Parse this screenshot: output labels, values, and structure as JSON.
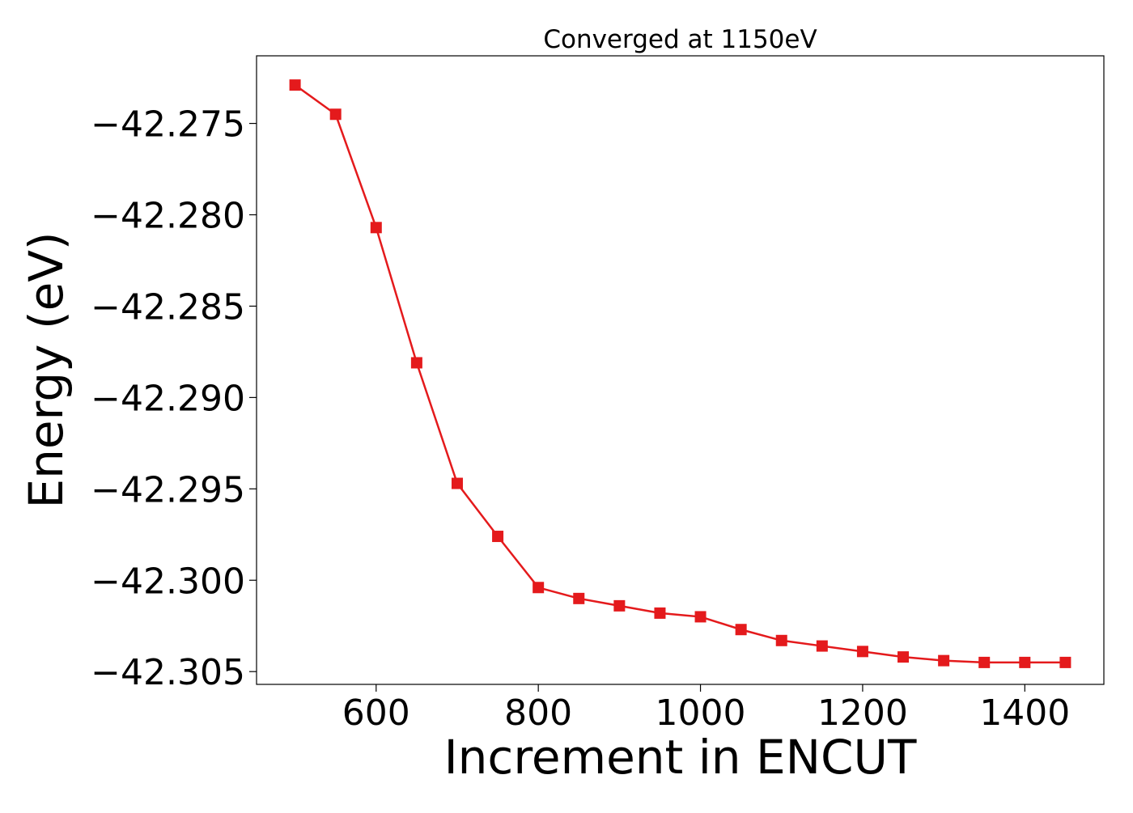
{
  "chart_data": {
    "type": "line",
    "title": "Converged at 1150eV",
    "xlabel": "Increment in ENCUT",
    "ylabel": "Energy (eV)",
    "xlim": [
      452.5,
      1497.5
    ],
    "ylim": [
      -42.3057,
      -42.2713
    ],
    "x_ticks": [
      600,
      800,
      1000,
      1200,
      1400
    ],
    "x_tick_labels": [
      "600",
      "800",
      "1000",
      "1200",
      "1400"
    ],
    "y_ticks": [
      -42.275,
      -42.28,
      -42.285,
      -42.29,
      -42.295,
      -42.3,
      -42.305
    ],
    "y_tick_labels": [
      "−42.275",
      "−42.280",
      "−42.285",
      "−42.290",
      "−42.295",
      "−42.300",
      "−42.305"
    ],
    "grid": false,
    "series": [
      {
        "color": "#e41a1c",
        "marker": "square",
        "x": [
          500,
          550,
          600,
          650,
          700,
          750,
          800,
          850,
          900,
          950,
          1000,
          1050,
          1100,
          1150,
          1200,
          1250,
          1300,
          1350,
          1400,
          1450
        ],
        "y": [
          -42.2729,
          -42.2745,
          -42.2807,
          -42.2881,
          -42.2947,
          -42.2976,
          -42.3004,
          -42.301,
          -42.3014,
          -42.3018,
          -42.302,
          -42.3027,
          -42.3033,
          -42.3036,
          -42.3039,
          -42.3042,
          -42.3044,
          -42.3045,
          -42.3045,
          -42.3045
        ]
      }
    ]
  }
}
